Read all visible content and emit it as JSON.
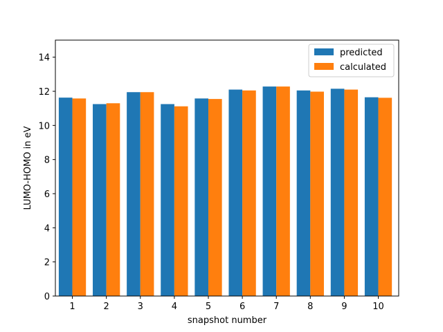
{
  "chart_data": {
    "type": "bar",
    "xlabel": "snapshot number",
    "ylabel": "LUMO-HOMO in eV",
    "categories": [
      "1",
      "2",
      "3",
      "4",
      "5",
      "6",
      "7",
      "8",
      "9",
      "10"
    ],
    "series": [
      {
        "name": "predicted",
        "color": "#1f77b4",
        "values": [
          11.63,
          11.25,
          11.95,
          11.25,
          11.58,
          12.1,
          12.28,
          12.05,
          12.15,
          11.65
        ]
      },
      {
        "name": "calculated",
        "color": "#ff7f0e",
        "values": [
          11.58,
          11.3,
          11.95,
          11.12,
          11.55,
          12.05,
          12.28,
          11.98,
          12.1,
          11.62
        ]
      }
    ],
    "ylim": [
      0,
      15
    ],
    "yticks": [
      0,
      2,
      4,
      6,
      8,
      10,
      12,
      14
    ],
    "grid": false,
    "legend_position": "top-right"
  }
}
